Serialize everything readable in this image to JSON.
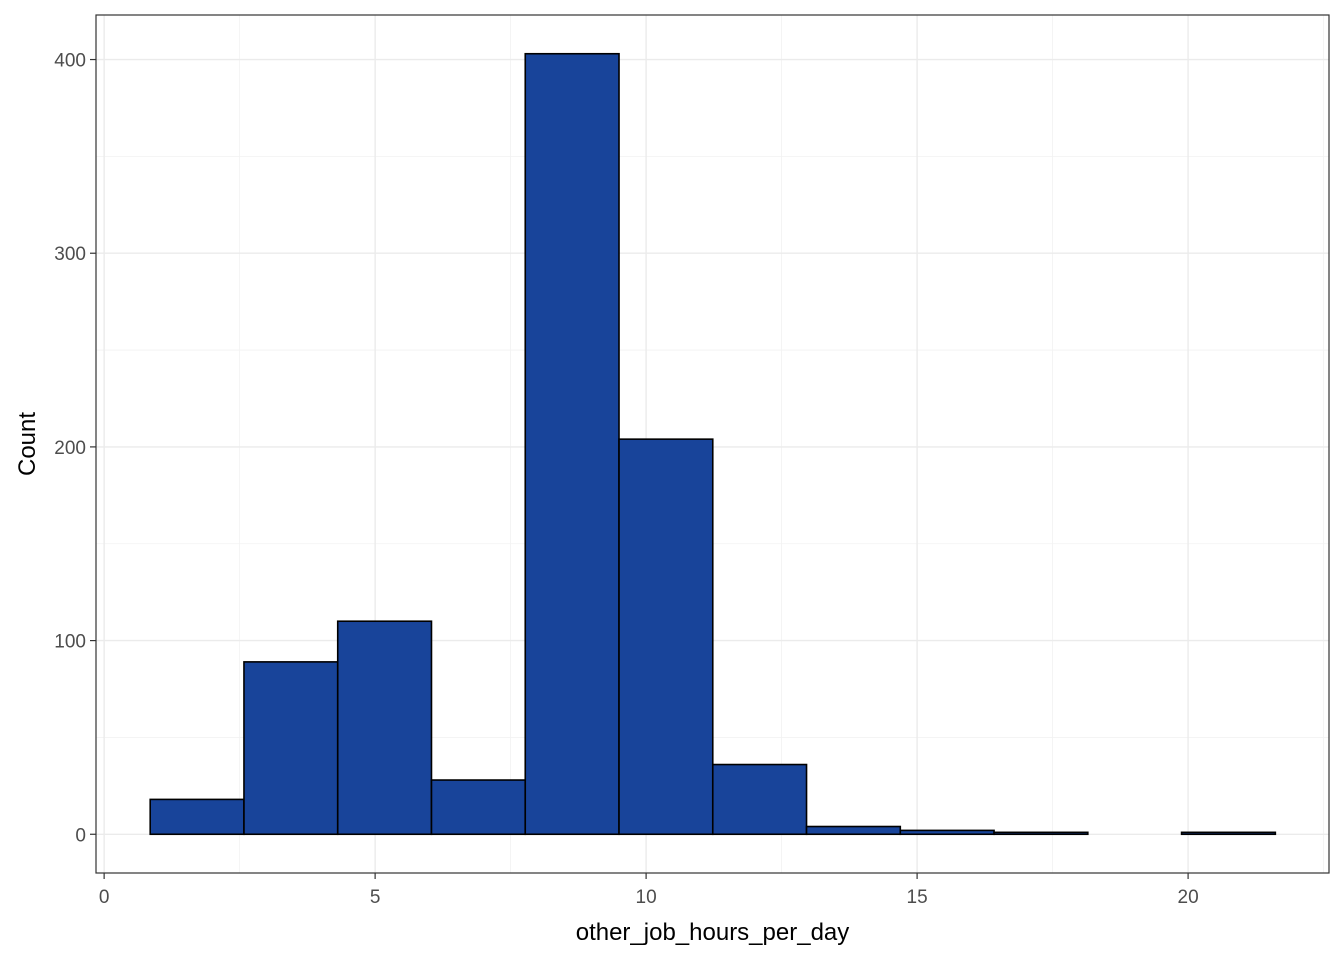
{
  "chart_data": {
    "type": "bar",
    "subtype": "histogram",
    "title": "",
    "xlabel": "other_job_hours_per_day",
    "ylabel": "Count",
    "xlim": [
      -0.15,
      22.6
    ],
    "ylim": [
      -20,
      423
    ],
    "x_ticks": [
      0,
      5,
      10,
      15,
      20
    ],
    "x_tick_labels": [
      "0",
      "5",
      "10",
      "15",
      "20"
    ],
    "y_ticks": [
      0,
      100,
      200,
      300,
      400
    ],
    "y_tick_labels": [
      "0",
      "100",
      "200",
      "300",
      "400"
    ],
    "x_minor_ticks": [
      2.5,
      7.5,
      12.5,
      17.5,
      22.5
    ],
    "y_minor_ticks": [
      50,
      150,
      250,
      350
    ],
    "grid": true,
    "legend": "none",
    "bar_fill": "#18449a",
    "bar_outline": "#000000",
    "bins": [
      {
        "x0": 0.85,
        "x1": 2.58,
        "count": 18
      },
      {
        "x0": 2.58,
        "x1": 4.31,
        "count": 89
      },
      {
        "x0": 4.31,
        "x1": 6.04,
        "count": 110
      },
      {
        "x0": 6.04,
        "x1": 7.77,
        "count": 28
      },
      {
        "x0": 7.77,
        "x1": 9.5,
        "count": 403
      },
      {
        "x0": 9.5,
        "x1": 11.23,
        "count": 204
      },
      {
        "x0": 11.23,
        "x1": 12.96,
        "count": 36
      },
      {
        "x0": 12.96,
        "x1": 14.69,
        "count": 4
      },
      {
        "x0": 14.69,
        "x1": 16.42,
        "count": 2
      },
      {
        "x0": 16.42,
        "x1": 18.15,
        "count": 1
      },
      {
        "x0": 18.15,
        "x1": 19.88,
        "count": 0
      },
      {
        "x0": 19.88,
        "x1": 21.61,
        "count": 1
      }
    ]
  }
}
